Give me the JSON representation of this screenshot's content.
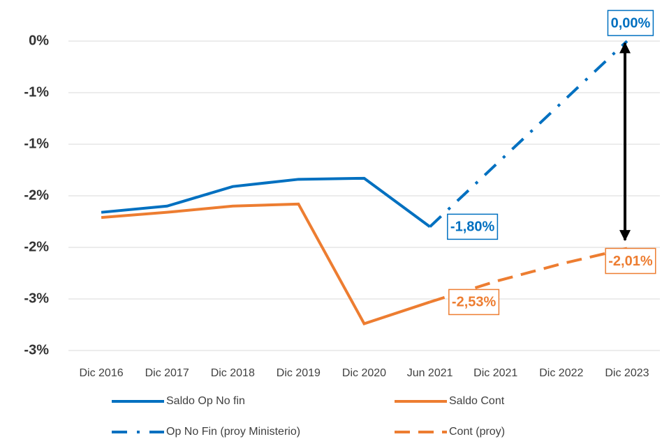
{
  "chart_data": {
    "type": "line",
    "categories": [
      "Dic 2016",
      "Dic 2017",
      "Dic 2018",
      "Dic 2019",
      "Dic 2020",
      "Jun 2021",
      "Dic 2021",
      "Dic 2022",
      "Dic 2023"
    ],
    "series": [
      {
        "name": "Saldo Op No fin",
        "color": "#0070c0",
        "dash": "solid",
        "values": [
          -1.66,
          -1.6,
          -1.41,
          -1.34,
          -1.33,
          -1.8,
          null,
          null,
          null
        ],
        "value_labels": [
          null,
          null,
          null,
          null,
          null,
          "-1,80%",
          null,
          null,
          null
        ]
      },
      {
        "name": "Saldo Cont",
        "color": "#ed7d31",
        "dash": "solid",
        "values": [
          -1.71,
          -1.66,
          -1.6,
          -1.58,
          -2.74,
          -2.53,
          null,
          null,
          null
        ],
        "value_labels": [
          null,
          null,
          null,
          null,
          null,
          "-2,53%",
          null,
          null,
          null
        ]
      },
      {
        "name": "Op No Fin (proy Ministerio)",
        "color": "#0070c0",
        "dash": "dashdot",
        "values": [
          null,
          null,
          null,
          null,
          null,
          -1.8,
          -1.2,
          -0.6,
          0.0
        ],
        "value_labels": [
          null,
          null,
          null,
          null,
          null,
          null,
          null,
          null,
          "0,00%"
        ]
      },
      {
        "name": "Cont (proy)",
        "color": "#ed7d31",
        "dash": "dashed",
        "values": [
          null,
          null,
          null,
          null,
          null,
          -2.53,
          -2.33,
          -2.16,
          -2.01
        ],
        "value_labels": [
          null,
          null,
          null,
          null,
          null,
          null,
          null,
          null,
          "-2,01%"
        ]
      }
    ],
    "ylim": [
      -3,
      0
    ],
    "yticks": [
      {
        "value": 0,
        "label": "0%"
      },
      {
        "value": -0.5,
        "label": "-1%"
      },
      {
        "value": -1,
        "label": "-1%"
      },
      {
        "value": -1.5,
        "label": "-2%"
      },
      {
        "value": -2,
        "label": "-2%"
      },
      {
        "value": -2.5,
        "label": "-3%"
      },
      {
        "value": -3,
        "label": "-3%"
      }
    ],
    "grid": true
  }
}
